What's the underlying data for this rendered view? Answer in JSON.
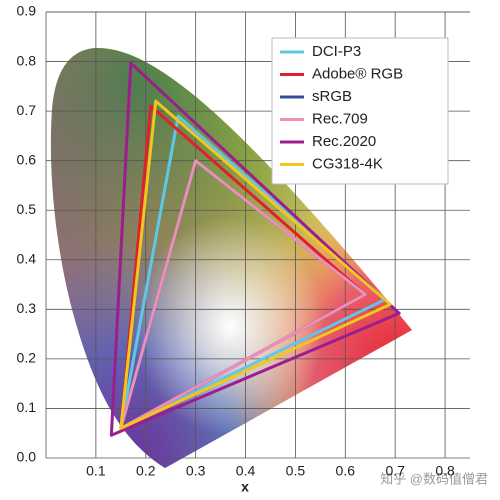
{
  "chart_data": {
    "type": "gamut",
    "xlabel": "x",
    "xlim": [
      0,
      0.85
    ],
    "ylim": [
      0,
      0.9
    ],
    "xticks": [
      0.1,
      0.2,
      0.3,
      0.4,
      0.5,
      0.6,
      0.7,
      0.8
    ],
    "yticks": [
      {
        "value": 0,
        "label": "0.0"
      },
      0.1,
      0.2,
      0.3,
      0.4,
      0.5,
      0.6,
      0.7,
      0.8,
      0.9
    ],
    "grid": true,
    "legend": "upper right",
    "annotation": "知乎 @数码值僧君",
    "series": [
      {
        "name": "DCI-P3",
        "color": "#5ec8e6",
        "x": [
          0.68,
          0.265,
          0.15
        ],
        "values": [
          0.32,
          0.69,
          0.06
        ]
      },
      {
        "name": "Adobe® RGB",
        "color": "#e0202a",
        "x": [
          0.64,
          0.21,
          0.15
        ],
        "values": [
          0.33,
          0.71,
          0.06
        ]
      },
      {
        "name": "sRGB",
        "color": "#34489e",
        "x": [
          0.64,
          0.3,
          0.15
        ],
        "values": [
          0.33,
          0.6,
          0.06
        ]
      },
      {
        "name": "Rec.709",
        "color": "#ee8fb8",
        "x": [
          0.64,
          0.3,
          0.15
        ],
        "values": [
          0.33,
          0.6,
          0.06
        ]
      },
      {
        "name": "Rec.2020",
        "color": "#9b1d8e",
        "x": [
          0.708,
          0.17,
          0.131
        ],
        "values": [
          0.292,
          0.797,
          0.046
        ]
      },
      {
        "name": "CG318-4K",
        "color": "#f2c61a",
        "x": [
          0.69,
          0.22,
          0.15
        ],
        "values": [
          0.31,
          0.72,
          0.06
        ]
      }
    ]
  }
}
